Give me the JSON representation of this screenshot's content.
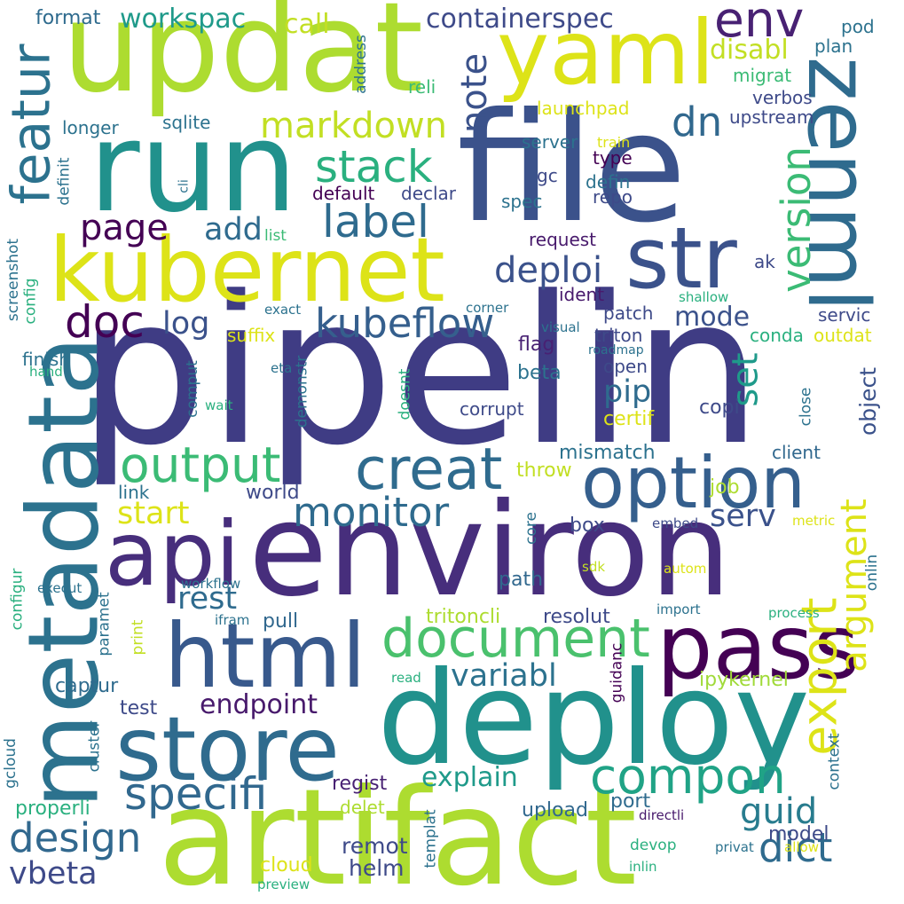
{
  "words": [
    {
      "text": "pipelin",
      "color": "#3f3c84"
    },
    {
      "text": "environ",
      "color": "#472e7c"
    },
    {
      "text": "artifact",
      "color": "#addc30"
    },
    {
      "text": "deploy",
      "color": "#21918c"
    },
    {
      "text": "file",
      "color": "#3b528b"
    },
    {
      "text": "updat",
      "color": "#addc30"
    },
    {
      "text": "run",
      "color": "#21918c"
    },
    {
      "text": "metadata",
      "color": "#2c728e"
    },
    {
      "text": "kubernet",
      "color": "#dde318"
    },
    {
      "text": "api",
      "color": "#472e7c"
    },
    {
      "text": "html",
      "color": "#38598c"
    },
    {
      "text": "pass",
      "color": "#440154"
    },
    {
      "text": "store",
      "color": "#2f6b8e"
    },
    {
      "text": "yaml",
      "color": "#dde318"
    },
    {
      "text": "option",
      "color": "#355f8d"
    },
    {
      "text": "zenml",
      "color": "#2f6b8e"
    },
    {
      "text": "str",
      "color": "#3b528b"
    },
    {
      "text": "featur",
      "color": "#2c728e"
    },
    {
      "text": "document",
      "color": "#4ac16d"
    },
    {
      "text": "creat",
      "color": "#2f6b8e"
    },
    {
      "text": "export",
      "color": "#dde318"
    },
    {
      "text": "output",
      "color": "#3bbb75"
    },
    {
      "text": "compon",
      "color": "#20a386"
    },
    {
      "text": "env",
      "color": "#482173"
    },
    {
      "text": "stack",
      "color": "#2ab07f"
    },
    {
      "text": "specifi",
      "color": "#31688e"
    },
    {
      "text": "label",
      "color": "#2f6b8e"
    },
    {
      "text": "markdown",
      "color": "#c2df23"
    },
    {
      "text": "doc",
      "color": "#440154"
    },
    {
      "text": "version",
      "color": "#3bbb75"
    },
    {
      "text": "monitor",
      "color": "#2f6b8e"
    },
    {
      "text": "kubeflow",
      "color": "#355f8d"
    },
    {
      "text": "design",
      "color": "#31688e"
    },
    {
      "text": "dict",
      "color": "#2f6b8e"
    },
    {
      "text": "argument",
      "color": "#dde318"
    },
    {
      "text": "dn",
      "color": "#31688e"
    },
    {
      "text": "note",
      "color": "#3b528b"
    },
    {
      "text": "guid",
      "color": "#287c8e"
    },
    {
      "text": "deploi",
      "color": "#3b528b"
    },
    {
      "text": "start",
      "color": "#dde318"
    },
    {
      "text": "explain",
      "color": "#1f9a8a"
    },
    {
      "text": "page",
      "color": "#440154"
    },
    {
      "text": "variabl",
      "color": "#2c728e"
    },
    {
      "text": "endpoint",
      "color": "#481a6c"
    },
    {
      "text": "rest",
      "color": "#2f6b8e"
    },
    {
      "text": "containerspec",
      "color": "#3e4a89"
    },
    {
      "text": "log",
      "color": "#3b528b"
    },
    {
      "text": "serv",
      "color": "#3b528b"
    },
    {
      "text": "set",
      "color": "#1f9a8a"
    },
    {
      "text": "pip",
      "color": "#2f6b8e"
    },
    {
      "text": "workspac",
      "color": "#1f9a8a"
    },
    {
      "text": "add",
      "color": "#2f6b8e"
    },
    {
      "text": "vbeta",
      "color": "#3e4a89"
    },
    {
      "text": "object",
      "color": "#3b528b"
    },
    {
      "text": "call",
      "color": "#c2df23"
    },
    {
      "text": "mode",
      "color": "#3b528b"
    },
    {
      "text": "disabl",
      "color": "#c2df23"
    },
    {
      "text": "format",
      "color": "#2f6b8e"
    },
    {
      "text": "world",
      "color": "#3e4a89"
    },
    {
      "text": "model",
      "color": "#3e4a89"
    },
    {
      "text": "remot",
      "color": "#3e4a89"
    },
    {
      "text": "helm",
      "color": "#3e4a89"
    },
    {
      "text": "regist",
      "color": "#482173"
    },
    {
      "text": "pull",
      "color": "#31688e"
    },
    {
      "text": "mismatch",
      "color": "#2c728e"
    },
    {
      "text": "ipykernel",
      "color": "#a0da39"
    },
    {
      "text": "captur",
      "color": "#2f6b8e"
    },
    {
      "text": "test",
      "color": "#3e4a89"
    },
    {
      "text": "tritoncli",
      "color": "#addc30"
    },
    {
      "text": "resolut",
      "color": "#3e4a89"
    },
    {
      "text": "upload",
      "color": "#31688e"
    },
    {
      "text": "port",
      "color": "#2f6b8e"
    },
    {
      "text": "delet",
      "color": "#addc30"
    },
    {
      "text": "cloud",
      "color": "#dde318"
    },
    {
      "text": "properli",
      "color": "#2ab07f"
    },
    {
      "text": "corrupt",
      "color": "#3e4a89"
    },
    {
      "text": "patch",
      "color": "#3e4a89"
    },
    {
      "text": "triton",
      "color": "#3e4a89"
    },
    {
      "text": "flag",
      "color": "#482173"
    },
    {
      "text": "open",
      "color": "#3e4a89"
    },
    {
      "text": "beta",
      "color": "#2c728e"
    },
    {
      "text": "copi",
      "color": "#3e4a89"
    },
    {
      "text": "certif",
      "color": "#dde318"
    },
    {
      "text": "throw",
      "color": "#c2df23"
    },
    {
      "text": "client",
      "color": "#31688e"
    },
    {
      "text": "job",
      "color": "#addc30"
    },
    {
      "text": "box",
      "color": "#3e4a89"
    },
    {
      "text": "path",
      "color": "#31688e"
    },
    {
      "text": "link",
      "color": "#2c728e"
    },
    {
      "text": "request",
      "color": "#481a6c"
    },
    {
      "text": "ident",
      "color": "#481a6c"
    },
    {
      "text": "servic",
      "color": "#3e4a89"
    },
    {
      "text": "conda",
      "color": "#2ab07f"
    },
    {
      "text": "outdat",
      "color": "#dde318"
    },
    {
      "text": "ak",
      "color": "#3e4a89"
    },
    {
      "text": "default",
      "color": "#440154"
    },
    {
      "text": "declar",
      "color": "#3e4a89"
    },
    {
      "text": "spec",
      "color": "#2c728e"
    },
    {
      "text": "repo",
      "color": "#3e4a89"
    },
    {
      "text": "defin",
      "color": "#2c728e"
    },
    {
      "text": "type",
      "color": "#440154"
    },
    {
      "text": "gc",
      "color": "#3e4a89"
    },
    {
      "text": "server",
      "color": "#2c728e"
    },
    {
      "text": "train",
      "color": "#dde318"
    },
    {
      "text": "launchpad",
      "color": "#dde318"
    },
    {
      "text": "upstream",
      "color": "#3e4a89"
    },
    {
      "text": "verbos",
      "color": "#3e4a89"
    },
    {
      "text": "migrat",
      "color": "#3bbb75"
    },
    {
      "text": "plan",
      "color": "#2c728e"
    },
    {
      "text": "pod",
      "color": "#2c728e"
    },
    {
      "text": "reli",
      "color": "#3bbb75"
    },
    {
      "text": "sqlite",
      "color": "#2c728e"
    },
    {
      "text": "longer",
      "color": "#2c728e"
    },
    {
      "text": "list",
      "color": "#3bbb75"
    },
    {
      "text": "suffix",
      "color": "#dde318"
    },
    {
      "text": "finish",
      "color": "#2c728e"
    },
    {
      "text": "hand",
      "color": "#2ab07f"
    },
    {
      "text": "eta",
      "color": "#2c728e"
    },
    {
      "text": "exact",
      "color": "#2c728e"
    },
    {
      "text": "wait",
      "color": "#2ab07f"
    },
    {
      "text": "corner",
      "color": "#2c728e"
    },
    {
      "text": "visual",
      "color": "#2c728e"
    },
    {
      "text": "roadmap",
      "color": "#2c728e"
    },
    {
      "text": "shallow",
      "color": "#2ab07f"
    },
    {
      "text": "embed",
      "color": "#3e4a89"
    },
    {
      "text": "metric",
      "color": "#dde318"
    },
    {
      "text": "autom",
      "color": "#dde318"
    },
    {
      "text": "sdk",
      "color": "#c2df23"
    },
    {
      "text": "execut",
      "color": "#2c728e"
    },
    {
      "text": "workflow",
      "color": "#2c728e"
    },
    {
      "text": "ifram",
      "color": "#2c728e"
    },
    {
      "text": "import",
      "color": "#2c728e"
    },
    {
      "text": "process",
      "color": "#2ab07f"
    },
    {
      "text": "read",
      "color": "#2ab07f"
    },
    {
      "text": "directli",
      "color": "#481a6c"
    },
    {
      "text": "privat",
      "color": "#2c728e"
    },
    {
      "text": "allow",
      "color": "#dde318"
    },
    {
      "text": "inlin",
      "color": "#2ab07f"
    },
    {
      "text": "devop",
      "color": "#2ab07f"
    },
    {
      "text": "preview",
      "color": "#2ab07f"
    },
    {
      "text": "address",
      "color": "#2c728e"
    },
    {
      "text": "definit",
      "color": "#2c728e"
    },
    {
      "text": "cli",
      "color": "#2c728e"
    },
    {
      "text": "screenshot",
      "color": "#2c728e"
    },
    {
      "text": "config",
      "color": "#2ab07f"
    },
    {
      "text": "comput",
      "color": "#2c728e"
    },
    {
      "text": "demonstr",
      "color": "#2c728e"
    },
    {
      "text": "doesnt",
      "color": "#2ab07f"
    },
    {
      "text": "close",
      "color": "#2c728e"
    },
    {
      "text": "onlin",
      "color": "#2c728e"
    },
    {
      "text": "core",
      "color": "#2c728e"
    },
    {
      "text": "configur",
      "color": "#2ab07f"
    },
    {
      "text": "paramet",
      "color": "#2c728e"
    },
    {
      "text": "print",
      "color": "#c2df23"
    },
    {
      "text": "cluster",
      "color": "#2c728e"
    },
    {
      "text": "gcloud",
      "color": "#2c728e"
    },
    {
      "text": "guidanc",
      "color": "#440154"
    },
    {
      "text": "context",
      "color": "#2c728e"
    },
    {
      "text": "templat",
      "color": "#2c728e"
    }
  ]
}
